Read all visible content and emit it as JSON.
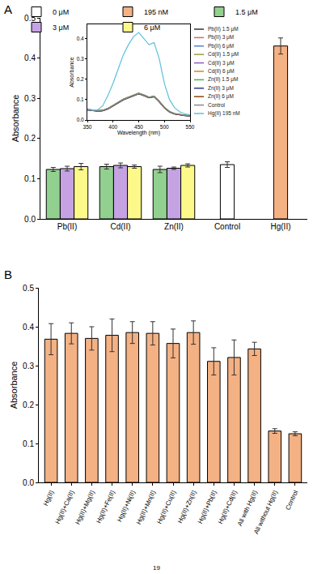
{
  "chart_data": [
    {
      "type": "bar",
      "panel_label": "A",
      "y_label": "Absorbance",
      "legend": "top",
      "categories": [
        "Pb(II)",
        "Cd(II)",
        "Zn(II)",
        "Control",
        "Hg(II)"
      ],
      "ylim": [
        0,
        0.5
      ],
      "yticks": [
        {
          "value": 0,
          "label": "0.0"
        },
        0.1,
        0.2,
        0.3,
        0.4,
        0.5
      ],
      "series": [
        {
          "name": "0 μM",
          "color": "#ffffff",
          "values": [
            null,
            null,
            null,
            0.135,
            null
          ],
          "errors": [
            null,
            null,
            null,
            0.007,
            null
          ]
        },
        {
          "name": "195 nM",
          "color": "#f4b183",
          "values": [
            null,
            null,
            null,
            null,
            0.43
          ],
          "errors": [
            null,
            null,
            null,
            null,
            0.02
          ]
        },
        {
          "name": "1.5 μM",
          "color": "#92d08f",
          "values": [
            0.123,
            0.13,
            0.123,
            null,
            null
          ],
          "errors": [
            0.005,
            0.006,
            0.008,
            null,
            null
          ]
        },
        {
          "name": "3 μM",
          "color": "#c5a3e3",
          "values": [
            0.125,
            0.133,
            0.126,
            null,
            null
          ],
          "errors": [
            0.006,
            0.006,
            0.003,
            null,
            null
          ]
        },
        {
          "name": "6 μM",
          "color": "#fcf98a",
          "values": [
            0.13,
            0.13,
            0.133,
            null,
            null
          ],
          "errors": [
            0.008,
            0.004,
            0.004,
            null,
            null
          ]
        }
      ]
    },
    {
      "type": "line",
      "x_label": "Wavelength (nm)",
      "y_label": "Absorbance",
      "legend": "right",
      "x": [
        350,
        360,
        370,
        380,
        390,
        400,
        410,
        420,
        430,
        440,
        450,
        460,
        470,
        480,
        490,
        500,
        510,
        520,
        530,
        540,
        550
      ],
      "xlim": [
        350,
        550
      ],
      "xticks": [
        350,
        400,
        450,
        500,
        550
      ],
      "ylim": [
        0,
        0.47
      ],
      "yticks": [
        {
          "value": 0,
          "label": "0.0"
        },
        0.1,
        0.2,
        0.3,
        0.4
      ],
      "series": [
        {
          "name": "Pb(II) 1.5 μM",
          "color": "#333333",
          "values": [
            0.05,
            0.046,
            0.044,
            0.046,
            0.055,
            0.07,
            0.085,
            0.1,
            0.11,
            0.12,
            0.13,
            0.121,
            0.11,
            0.115,
            0.09,
            0.06,
            0.04,
            0.03,
            0.025,
            0.022,
            0.02
          ]
        },
        {
          "name": "Pb(II) 3 μM",
          "color": "#e06666",
          "values": [
            0.051,
            0.047,
            0.045,
            0.047,
            0.056,
            0.071,
            0.086,
            0.101,
            0.111,
            0.121,
            0.131,
            0.122,
            0.111,
            0.116,
            0.091,
            0.061,
            0.041,
            0.031,
            0.026,
            0.023,
            0.021
          ]
        },
        {
          "name": "Pb(II) 6 μM",
          "color": "#5b7fd1",
          "values": [
            0.052,
            0.048,
            0.046,
            0.048,
            0.057,
            0.072,
            0.087,
            0.102,
            0.112,
            0.122,
            0.132,
            0.123,
            0.112,
            0.117,
            0.092,
            0.062,
            0.042,
            0.032,
            0.027,
            0.024,
            0.022
          ]
        },
        {
          "name": "Cd(II) 1.5 μM",
          "color": "#9e9e3c",
          "values": [
            0.049,
            0.045,
            0.043,
            0.045,
            0.054,
            0.069,
            0.084,
            0.099,
            0.109,
            0.119,
            0.129,
            0.12,
            0.109,
            0.114,
            0.089,
            0.059,
            0.039,
            0.029,
            0.024,
            0.021,
            0.019
          ]
        },
        {
          "name": "Cd(II) 3 μM",
          "color": "#9b59b6",
          "values": [
            0.05,
            0.046,
            0.044,
            0.046,
            0.055,
            0.07,
            0.085,
            0.1,
            0.11,
            0.12,
            0.13,
            0.121,
            0.11,
            0.115,
            0.09,
            0.06,
            0.04,
            0.03,
            0.025,
            0.022,
            0.02
          ]
        },
        {
          "name": "Cd(II) 6 μM",
          "color": "#d9822b",
          "values": [
            0.051,
            0.047,
            0.045,
            0.047,
            0.056,
            0.071,
            0.086,
            0.101,
            0.111,
            0.121,
            0.131,
            0.122,
            0.111,
            0.116,
            0.091,
            0.061,
            0.041,
            0.031,
            0.026,
            0.023,
            0.021
          ]
        },
        {
          "name": "Zn(II) 1.5 μM",
          "color": "#4caf50",
          "values": [
            0.052,
            0.048,
            0.046,
            0.048,
            0.057,
            0.072,
            0.087,
            0.102,
            0.112,
            0.122,
            0.132,
            0.123,
            0.112,
            0.117,
            0.092,
            0.062,
            0.042,
            0.032,
            0.027,
            0.024,
            0.022
          ]
        },
        {
          "name": "Zn(II) 3 μM",
          "color": "#2a3a8f",
          "values": [
            0.049,
            0.045,
            0.043,
            0.045,
            0.054,
            0.069,
            0.084,
            0.099,
            0.109,
            0.119,
            0.129,
            0.12,
            0.109,
            0.114,
            0.089,
            0.059,
            0.039,
            0.029,
            0.024,
            0.021,
            0.019
          ]
        },
        {
          "name": "Zn(II) 6 μM",
          "color": "#8b4513",
          "values": [
            0.05,
            0.046,
            0.044,
            0.046,
            0.055,
            0.07,
            0.085,
            0.1,
            0.11,
            0.12,
            0.13,
            0.121,
            0.11,
            0.115,
            0.09,
            0.06,
            0.04,
            0.03,
            0.025,
            0.022,
            0.02
          ]
        },
        {
          "name": "Control",
          "color": "#888888",
          "values": [
            0.051,
            0.047,
            0.045,
            0.047,
            0.056,
            0.071,
            0.086,
            0.101,
            0.111,
            0.121,
            0.131,
            0.122,
            0.111,
            0.116,
            0.091,
            0.061,
            0.041,
            0.031,
            0.026,
            0.023,
            0.021
          ]
        },
        {
          "name": "Hg(II) 195 nM",
          "color": "#5bc0de",
          "values": [
            0.055,
            0.048,
            0.05,
            0.07,
            0.12,
            0.18,
            0.25,
            0.32,
            0.37,
            0.41,
            0.43,
            0.4,
            0.37,
            0.38,
            0.3,
            0.18,
            0.1,
            0.06,
            0.04,
            0.03,
            0.025
          ]
        }
      ]
    },
    {
      "type": "bar",
      "panel_label": "B",
      "y_label": "Absorbance",
      "color": "#f4b183",
      "categories": [
        "Hg(II)",
        "Hg(II)+Ca(II)",
        "Hg(II)+Mg(II)",
        "Hg(II)+Fe(II)",
        "Hg(II)+Ni(II)",
        "Hg(II)+Mn(II)",
        "Hg(II)+Cu(II)",
        "Hg(II)+Zn(II)",
        "Hg(II)+Pb(II)",
        "Hg(II)+Cd(II)",
        "All with Hg(II)",
        "All without Hg(II)",
        "Control"
      ],
      "values": [
        0.368,
        0.383,
        0.37,
        0.378,
        0.385,
        0.383,
        0.357,
        0.385,
        0.311,
        0.321,
        0.343,
        0.132,
        0.125
      ],
      "errors": [
        0.04,
        0.027,
        0.03,
        0.042,
        0.028,
        0.03,
        0.037,
        0.03,
        0.035,
        0.045,
        0.017,
        0.006,
        0.005
      ],
      "ylim": [
        0,
        0.5
      ],
      "yticks": [
        {
          "value": 0,
          "label": "0.0"
        },
        0.1,
        0.2,
        0.3,
        0.4,
        0.5
      ]
    }
  ],
  "footer": "19"
}
